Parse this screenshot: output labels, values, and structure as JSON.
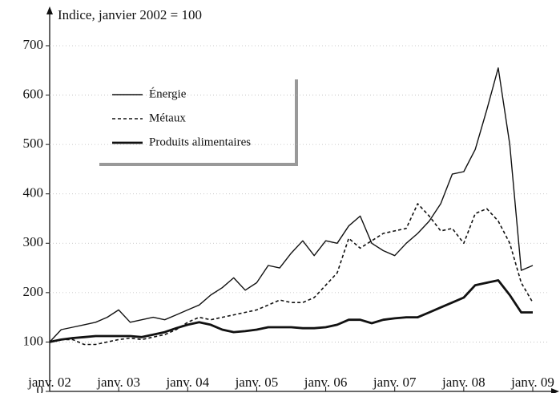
{
  "chart_data": {
    "type": "line",
    "title": "Indice, janvier 2002 = 100",
    "categories": [
      "janv. 02",
      null,
      null,
      null,
      null,
      null,
      "janv. 03",
      null,
      null,
      null,
      null,
      null,
      "janv. 04",
      null,
      null,
      null,
      null,
      null,
      "janv. 05",
      null,
      null,
      null,
      null,
      null,
      "janv. 06",
      null,
      null,
      null,
      null,
      null,
      "janv. 07",
      null,
      null,
      null,
      null,
      null,
      "janv. 08",
      null,
      null,
      null,
      null,
      null,
      "janv. 09"
    ],
    "series": [
      {
        "name": "Énergie",
        "color": "#111111",
        "style": "solid",
        "values": [
          100,
          125,
          130,
          135,
          140,
          150,
          165,
          140,
          145,
          150,
          145,
          155,
          165,
          175,
          195,
          210,
          230,
          205,
          220,
          255,
          250,
          280,
          305,
          275,
          305,
          300,
          335,
          355,
          300,
          285,
          275,
          300,
          320,
          345,
          380,
          440,
          445,
          490,
          570,
          655,
          500,
          245,
          255
        ]
      },
      {
        "name": "Métaux",
        "color": "#111111",
        "style": "dashed",
        "values": [
          100,
          105,
          105,
          95,
          95,
          100,
          105,
          108,
          105,
          110,
          115,
          125,
          140,
          150,
          145,
          150,
          155,
          160,
          165,
          175,
          185,
          180,
          180,
          190,
          215,
          240,
          310,
          290,
          305,
          320,
          325,
          330,
          380,
          355,
          325,
          330,
          300,
          360,
          370,
          345,
          300,
          220,
          180
        ]
      },
      {
        "name": "Produits alimentaires",
        "color": "#111111",
        "style": "bold",
        "values": [
          100,
          105,
          108,
          110,
          112,
          112,
          112,
          112,
          110,
          115,
          120,
          128,
          135,
          140,
          135,
          125,
          120,
          122,
          125,
          130,
          130,
          130,
          128,
          128,
          130,
          135,
          145,
          145,
          138,
          145,
          148,
          150,
          150,
          160,
          170,
          180,
          190,
          215,
          220,
          225,
          195,
          160,
          160
        ]
      }
    ],
    "ylim": [
      0,
      700
    ],
    "yticks": [
      0,
      100,
      200,
      300,
      400,
      500,
      600,
      700
    ],
    "grid": true,
    "legend": "upper left"
  }
}
